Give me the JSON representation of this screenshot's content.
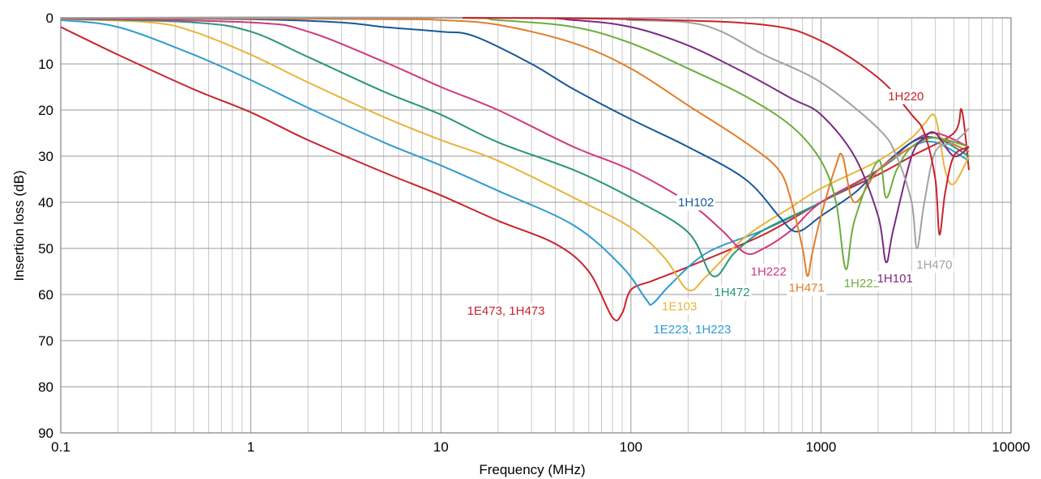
{
  "chart_data": {
    "type": "line",
    "title": "",
    "xlabel": "Frequency (MHz)",
    "ylabel": "Insertion loss (dB)",
    "xscale": "log",
    "xlim": [
      0.1,
      10000
    ],
    "ylim": [
      0,
      90
    ],
    "y_inverted": true,
    "grid": true,
    "legend": "inline labels",
    "x_ticks": [
      0.1,
      1,
      10,
      100,
      1000,
      10000
    ],
    "x_tick_labels": [
      "0.1",
      "1",
      "10",
      "100",
      "1000",
      "10000"
    ],
    "y_ticks": [
      0,
      10,
      20,
      30,
      40,
      50,
      60,
      70,
      80,
      90
    ],
    "y_tick_labels": [
      "0",
      "10",
      "20",
      "30",
      "40",
      "50",
      "60",
      "70",
      "80",
      "90"
    ],
    "series": [
      {
        "name": "1E473, 1H473",
        "color": "#c8232c",
        "label_at": [
          22,
          63.5
        ],
        "points": [
          [
            0.1,
            2
          ],
          [
            0.2,
            8
          ],
          [
            0.5,
            15.5
          ],
          [
            1,
            20.5
          ],
          [
            2,
            26.5
          ],
          [
            5,
            33.5
          ],
          [
            10,
            38.5
          ],
          [
            20,
            44
          ],
          [
            40,
            49
          ],
          [
            60,
            55
          ],
          [
            80,
            65
          ],
          [
            90,
            64
          ],
          [
            100,
            59
          ],
          [
            130,
            57
          ],
          [
            200,
            54
          ],
          [
            500,
            47
          ],
          [
            1000,
            40
          ],
          [
            2000,
            34
          ],
          [
            3000,
            30
          ],
          [
            5000,
            25
          ],
          [
            5500,
            20
          ],
          [
            6000,
            33
          ]
        ]
      },
      {
        "name": "1E223, 1H223",
        "color": "#2e9bd2",
        "label_at": [
          210,
          67.5
        ],
        "points": [
          [
            0.1,
            0.5
          ],
          [
            0.2,
            2
          ],
          [
            0.5,
            8
          ],
          [
            1,
            13.5
          ],
          [
            2,
            19.5
          ],
          [
            5,
            27
          ],
          [
            10,
            32
          ],
          [
            20,
            37.5
          ],
          [
            50,
            45
          ],
          [
            90,
            54
          ],
          [
            120,
            61
          ],
          [
            130,
            62
          ],
          [
            160,
            58
          ],
          [
            250,
            51
          ],
          [
            500,
            46
          ],
          [
            1000,
            40
          ],
          [
            2000,
            33
          ],
          [
            3000,
            28
          ],
          [
            4000,
            27
          ],
          [
            6000,
            31
          ]
        ]
      },
      {
        "name": "1E103",
        "color": "#e8b53a",
        "label_at": [
          180,
          62.5
        ],
        "points": [
          [
            0.1,
            0.3
          ],
          [
            0.3,
            1
          ],
          [
            0.5,
            3
          ],
          [
            1,
            8
          ],
          [
            2,
            14
          ],
          [
            5,
            21.5
          ],
          [
            10,
            26.5
          ],
          [
            20,
            31
          ],
          [
            50,
            39
          ],
          [
            100,
            45.5
          ],
          [
            150,
            52
          ],
          [
            200,
            59
          ],
          [
            250,
            56
          ],
          [
            400,
            47.5
          ],
          [
            700,
            41
          ],
          [
            1000,
            37
          ],
          [
            2000,
            31
          ],
          [
            3000,
            26
          ],
          [
            3500,
            23
          ],
          [
            4000,
            21.5
          ],
          [
            4500,
            33
          ],
          [
            5000,
            36
          ],
          [
            6000,
            30
          ]
        ]
      },
      {
        "name": "1H472",
        "color": "#2a9678",
        "label_at": [
          340,
          59.5
        ],
        "points": [
          [
            0.1,
            0.2
          ],
          [
            0.5,
            1
          ],
          [
            1,
            3
          ],
          [
            2,
            8.5
          ],
          [
            5,
            16
          ],
          [
            10,
            21
          ],
          [
            20,
            27
          ],
          [
            50,
            33
          ],
          [
            100,
            39
          ],
          [
            200,
            46.5
          ],
          [
            270,
            56
          ],
          [
            350,
            51
          ],
          [
            500,
            46
          ],
          [
            1000,
            40
          ],
          [
            2000,
            33
          ],
          [
            3000,
            27
          ],
          [
            4000,
            26
          ],
          [
            6000,
            30
          ]
        ]
      },
      {
        "name": "1H222",
        "color": "#d1377e",
        "label_at": [
          530,
          55
        ],
        "points": [
          [
            0.1,
            0.1
          ],
          [
            1,
            1
          ],
          [
            2,
            3
          ],
          [
            5,
            9.5
          ],
          [
            10,
            15
          ],
          [
            20,
            20
          ],
          [
            50,
            28
          ],
          [
            100,
            33
          ],
          [
            200,
            40
          ],
          [
            300,
            46
          ],
          [
            400,
            51
          ],
          [
            500,
            50
          ],
          [
            700,
            46
          ],
          [
            1000,
            40
          ],
          [
            2000,
            33
          ],
          [
            3000,
            27
          ],
          [
            4000,
            25
          ],
          [
            6000,
            28
          ]
        ]
      },
      {
        "name": "1H102",
        "color": "#17589a",
        "label_at": [
          220,
          40
        ],
        "points": [
          [
            0.1,
            0
          ],
          [
            1,
            0.3
          ],
          [
            3,
            1
          ],
          [
            5,
            2
          ],
          [
            10,
            3
          ],
          [
            15,
            4
          ],
          [
            30,
            10
          ],
          [
            50,
            15.5
          ],
          [
            100,
            22
          ],
          [
            200,
            28
          ],
          [
            400,
            35
          ],
          [
            600,
            43
          ],
          [
            700,
            46
          ],
          [
            800,
            46
          ],
          [
            1000,
            43
          ],
          [
            1500,
            38
          ],
          [
            2000,
            33
          ],
          [
            3000,
            27
          ],
          [
            4000,
            26
          ],
          [
            6000,
            29
          ]
        ]
      },
      {
        "name": "1H471",
        "color": "#e07e2a",
        "label_at": [
          840,
          58.5
        ],
        "points": [
          [
            0.1,
            0
          ],
          [
            5,
            0.3
          ],
          [
            10,
            0.5
          ],
          [
            20,
            1.5
          ],
          [
            50,
            5.5
          ],
          [
            100,
            11
          ],
          [
            200,
            19
          ],
          [
            400,
            27
          ],
          [
            600,
            33
          ],
          [
            700,
            40
          ],
          [
            800,
            50
          ],
          [
            850,
            56
          ],
          [
            900,
            51
          ],
          [
            1000,
            43
          ],
          [
            1200,
            32
          ],
          [
            1300,
            30
          ],
          [
            1500,
            40
          ],
          [
            2000,
            33
          ],
          [
            3000,
            28
          ],
          [
            4000,
            26
          ],
          [
            6000,
            29
          ]
        ]
      },
      {
        "name": "1H221",
        "color": "#6cad3c",
        "label_at": [
          1640,
          57.5
        ],
        "points": [
          [
            0.1,
            0
          ],
          [
            10,
            0
          ],
          [
            20,
            0.5
          ],
          [
            50,
            2
          ],
          [
            100,
            5.5
          ],
          [
            200,
            11
          ],
          [
            400,
            17
          ],
          [
            700,
            23.5
          ],
          [
            1000,
            31
          ],
          [
            1200,
            40
          ],
          [
            1350,
            54.5
          ],
          [
            1500,
            44
          ],
          [
            2000,
            31
          ],
          [
            2200,
            39
          ],
          [
            2500,
            33
          ],
          [
            3000,
            28
          ],
          [
            4000,
            26
          ],
          [
            6000,
            28
          ]
        ]
      },
      {
        "name": "1H101",
        "color": "#7a2a82",
        "label_at": [
          2450,
          56.5
        ],
        "points": [
          [
            0.1,
            0
          ],
          [
            20,
            0
          ],
          [
            50,
            0.5
          ],
          [
            100,
            2
          ],
          [
            200,
            6
          ],
          [
            400,
            12
          ],
          [
            700,
            17.5
          ],
          [
            1000,
            21
          ],
          [
            1500,
            30
          ],
          [
            2000,
            43
          ],
          [
            2200,
            53
          ],
          [
            2400,
            46
          ],
          [
            3000,
            30
          ],
          [
            3500,
            26
          ],
          [
            4000,
            25
          ],
          [
            5000,
            30
          ],
          [
            6000,
            28
          ]
        ]
      },
      {
        "name": "1H470",
        "color": "#a2a2a2",
        "label_at": [
          3950,
          53.5
        ],
        "points": [
          [
            0.1,
            0
          ],
          [
            50,
            0
          ],
          [
            100,
            0.5
          ],
          [
            200,
            1
          ],
          [
            300,
            3
          ],
          [
            500,
            8
          ],
          [
            1000,
            14
          ],
          [
            2000,
            24
          ],
          [
            2500,
            30
          ],
          [
            3000,
            40
          ],
          [
            3200,
            50
          ],
          [
            3500,
            40
          ],
          [
            4000,
            29
          ],
          [
            5000,
            27
          ],
          [
            6000,
            24
          ]
        ]
      },
      {
        "name": "1H220",
        "color": "#c8232c",
        "label_at": [
          2800,
          17
        ],
        "points": [
          [
            13,
            0
          ],
          [
            100,
            0.3
          ],
          [
            500,
            1.5
          ],
          [
            1000,
            5
          ],
          [
            2000,
            13
          ],
          [
            3000,
            21
          ],
          [
            3500,
            25
          ],
          [
            4000,
            35
          ],
          [
            4200,
            47
          ],
          [
            4500,
            38
          ],
          [
            5000,
            30
          ],
          [
            6000,
            28
          ]
        ]
      }
    ]
  }
}
